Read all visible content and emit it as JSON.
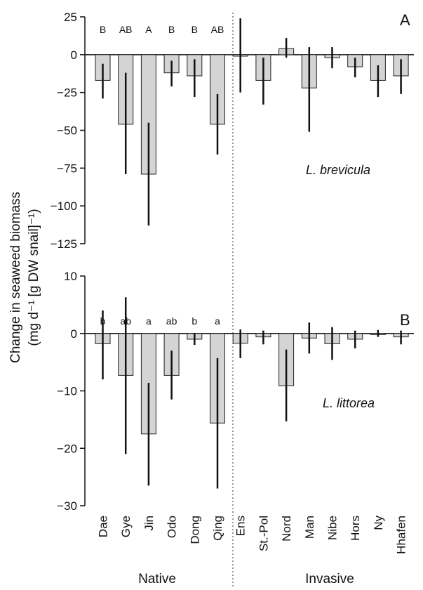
{
  "y_label_line1": "Change in seaweed biomass",
  "y_label_line2": "(mg d⁻¹ [g DW snail]⁻¹)",
  "categories": [
    "Dae",
    "Gye",
    "Jin",
    "Odo",
    "Dong",
    "Qing",
    "Ens",
    "St.-Pol",
    "Nord",
    "Man",
    "Nibe",
    "Hors",
    "Ny",
    "Hhafen"
  ],
  "groups": {
    "native": "Native",
    "invasive": "Invasive"
  },
  "chart_data": [
    {
      "type": "bar",
      "panel_letter": "A",
      "species_label": "L. brevicula",
      "categories": [
        "Dae",
        "Gye",
        "Jin",
        "Odo",
        "Dong",
        "Qing",
        "Ens",
        "St.-Pol",
        "Nord",
        "Man",
        "Nibe",
        "Hors",
        "Ny",
        "Hhafen"
      ],
      "values": [
        -17,
        -46,
        -79,
        -12,
        -14,
        -46,
        -1,
        -17,
        4,
        -22,
        -2,
        -8,
        -17,
        -14
      ],
      "error_low": [
        -29,
        -79,
        -113,
        -21,
        -28,
        -66,
        -25,
        -33,
        -2,
        -51,
        -9,
        -15,
        -28,
        -26
      ],
      "error_high": [
        -6,
        -12,
        -45,
        -4,
        -3,
        -26,
        24,
        -2,
        11,
        5,
        5,
        -2,
        -7,
        -3
      ],
      "significance_letters": [
        "B",
        "AB",
        "A",
        "B",
        "B",
        "AB",
        "",
        "",
        "",
        "",
        "",
        "",
        "",
        ""
      ],
      "yticks": [
        25,
        0,
        -25,
        -50,
        -75,
        -100,
        -125
      ],
      "ytick_labels": [
        "25",
        "0",
        "−25",
        "−50",
        "−75",
        "−100",
        "−125"
      ],
      "ylim": [
        -125,
        25
      ]
    },
    {
      "type": "bar",
      "panel_letter": "B",
      "species_label": "L. littorea",
      "categories": [
        "Dae",
        "Gye",
        "Jin",
        "Odo",
        "Dong",
        "Qing",
        "Ens",
        "St.-Pol",
        "Nord",
        "Man",
        "Nibe",
        "Hors",
        "Ny",
        "Hhafen"
      ],
      "values": [
        -1.8,
        -7.3,
        -17.5,
        -7.3,
        -1.0,
        -15.6,
        -1.7,
        -0.6,
        -9.1,
        -0.8,
        -1.8,
        -1.0,
        -0.2,
        -0.6
      ],
      "error_low": [
        -8,
        -21,
        -26.5,
        -11.5,
        -2,
        -27,
        -4.3,
        -1.9,
        -15.3,
        -3.5,
        -4.6,
        -2.6,
        -0.6,
        -1.9
      ],
      "error_high": [
        4,
        6.3,
        -8.6,
        -3,
        0,
        -4.3,
        0.7,
        0.5,
        -2.8,
        1.9,
        1.1,
        0.5,
        0.6,
        0.5
      ],
      "significance_letters": [
        "b",
        "ab",
        "a",
        "ab",
        "b",
        "a",
        "",
        "",
        "",
        "",
        "",
        "",
        "",
        ""
      ],
      "yticks": [
        10,
        0,
        -10,
        -20,
        -30
      ],
      "ytick_labels": [
        "10",
        "0",
        "−10",
        "−20",
        "−30"
      ],
      "ylim": [
        -30,
        10
      ]
    }
  ]
}
